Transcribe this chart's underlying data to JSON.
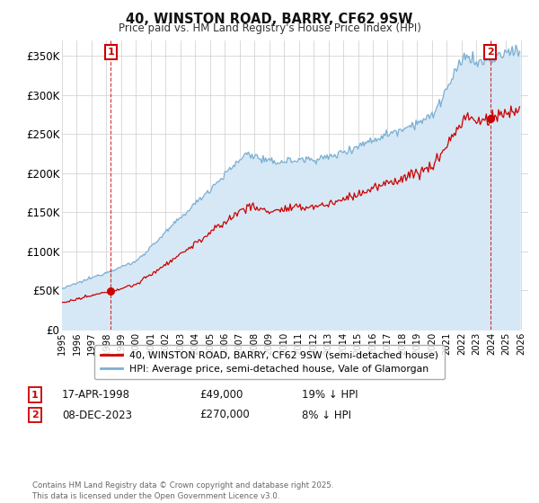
{
  "title": "40, WINSTON ROAD, BARRY, CF62 9SW",
  "subtitle": "Price paid vs. HM Land Registry's House Price Index (HPI)",
  "hpi_label": "HPI: Average price, semi-detached house, Vale of Glamorgan",
  "property_label": "40, WINSTON ROAD, BARRY, CF62 9SW (semi-detached house)",
  "hpi_color": "#7bafd4",
  "hpi_fill_color": "#d6e8f5",
  "property_color": "#cc0000",
  "ylim": [
    0,
    370000
  ],
  "yticks": [
    0,
    50000,
    100000,
    150000,
    200000,
    250000,
    300000,
    350000
  ],
  "ytick_labels": [
    "£0",
    "£50K",
    "£100K",
    "£150K",
    "£200K",
    "£250K",
    "£300K",
    "£350K"
  ],
  "annotation1": {
    "label": "1",
    "date": "17-APR-1998",
    "price": "£49,000",
    "hpi_note": "19% ↓ HPI"
  },
  "annotation2": {
    "label": "2",
    "date": "08-DEC-2023",
    "price": "£270,000",
    "hpi_note": "8% ↓ HPI"
  },
  "footnote": "Contains HM Land Registry data © Crown copyright and database right 2025.\nThis data is licensed under the Open Government Licence v3.0.",
  "sale1_year": 1998.29,
  "sale1_price": 49000,
  "sale2_year": 2023.93,
  "sale2_price": 270000,
  "background_color": "#ffffff",
  "grid_color": "#cccccc"
}
